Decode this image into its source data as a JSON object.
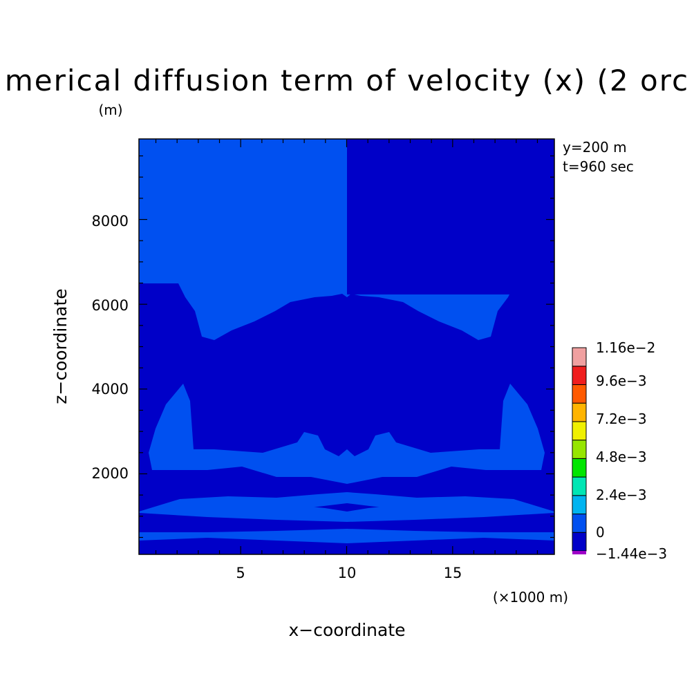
{
  "chart_data": {
    "type": "contour",
    "title": "merical diffusion term of velocity (x) (2 orc",
    "y_unit_label": "(m)",
    "x_unit_label": "(×1000 m)",
    "xlabel": "x−coordinate",
    "ylabel": "z−coordinate",
    "x_ticks": [
      "5",
      "10",
      "15"
    ],
    "y_ticks": [
      "2000",
      "4000",
      "6000",
      "8000"
    ],
    "xlim": [
      0.2,
      19.8
    ],
    "ylim": [
      100,
      9900
    ],
    "annotations": [
      "y=200 m",
      "t=960 sec"
    ],
    "colorbar": {
      "labels": [
        "1.16e−2",
        "9.6e−3",
        "7.2e−3",
        "4.8e−3",
        "2.4e−3",
        "0",
        "−1.44e−3"
      ],
      "levels": [
        -0.00144,
        0,
        0.0012,
        0.0024,
        0.0036,
        0.0048,
        0.006,
        0.0072,
        0.0084,
        0.0096,
        0.0108,
        0.0116
      ],
      "colors": [
        "#0000c8",
        "#0050f0",
        "#00b4f0",
        "#00e6b4",
        "#00e600",
        "#96e600",
        "#f0f000",
        "#ffb400",
        "#ff5a00",
        "#f01e1e",
        "#f0a0a0"
      ],
      "min_color": "#a000c8"
    },
    "fields": {
      "low_color": "#0000c8",
      "mid_color": "#0050f0"
    }
  }
}
